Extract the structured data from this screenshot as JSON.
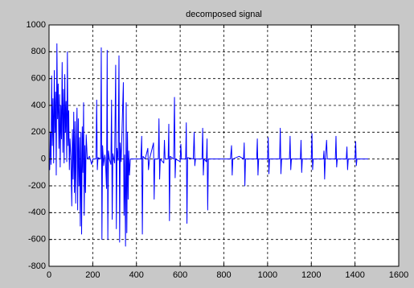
{
  "chart_data": {
    "type": "line",
    "title": "decomposed signal",
    "x": [
      0,
      3,
      6,
      9,
      12,
      15,
      18,
      21,
      24,
      27,
      30,
      33,
      36,
      39,
      42,
      45,
      48,
      51,
      54,
      57,
      60,
      63,
      66,
      69,
      72,
      75,
      78,
      81,
      84,
      87,
      90,
      93,
      96,
      100,
      104,
      107,
      110,
      113,
      116,
      119,
      122,
      125,
      128,
      131,
      134,
      137,
      140,
      143,
      146,
      149,
      152,
      155,
      158,
      161,
      164,
      167,
      170,
      175,
      185,
      195,
      200,
      215,
      218,
      221,
      224,
      236,
      239,
      242,
      245,
      250,
      255,
      258,
      263,
      266,
      269,
      272,
      276,
      283,
      286,
      289,
      292,
      300,
      305,
      308,
      311,
      316,
      320,
      323,
      326,
      330,
      340,
      343,
      346,
      350,
      353,
      356,
      359,
      362,
      365,
      368,
      372,
      420,
      424,
      427,
      430,
      440,
      452,
      455,
      460,
      478,
      481,
      484,
      500,
      503,
      506,
      509,
      525,
      528,
      531,
      545,
      548,
      551,
      554,
      570,
      574,
      577,
      580,
      600,
      603,
      606,
      625,
      628,
      631,
      634,
      660,
      664,
      667,
      670,
      700,
      703,
      706,
      709,
      720,
      723,
      726,
      729,
      760,
      830,
      835,
      838,
      841,
      870,
      890,
      893,
      896,
      899,
      950,
      953,
      956,
      959,
      1000,
      1003,
      1006,
      1009,
      1055,
      1058,
      1061,
      1064,
      1100,
      1103,
      1106,
      1109,
      1150,
      1153,
      1156,
      1159,
      1200,
      1203,
      1206,
      1209,
      1255,
      1258,
      1261,
      1264,
      1270,
      1273,
      1310,
      1313,
      1316,
      1319,
      1360,
      1363,
      1366,
      1369,
      1400,
      1403,
      1406,
      1409,
      1460
    ],
    "series": [
      {
        "color": "#0000ff",
        "values": [
          0,
          -80,
          200,
          -40,
          620,
          100,
          450,
          -30,
          660,
          200,
          500,
          -120,
          860,
          300,
          560,
          80,
          480,
          -60,
          400,
          150,
          720,
          50,
          520,
          -30,
          630,
          200,
          430,
          -20,
          800,
          100,
          360,
          -80,
          150,
          10,
          -350,
          220,
          -150,
          350,
          -250,
          280,
          -330,
          150,
          380,
          -380,
          300,
          -200,
          160,
          -500,
          200,
          -560,
          240,
          -100,
          420,
          -420,
          100,
          -250,
          180,
          0,
          20,
          -40,
          0,
          0,
          440,
          -80,
          10,
          0,
          830,
          -600,
          100,
          -50,
          30,
          0,
          -220,
          810,
          -600,
          60,
          0,
          -40,
          440,
          -450,
          40,
          -30,
          700,
          -520,
          80,
          -10,
          770,
          -620,
          120,
          -20,
          570,
          -420,
          30,
          -650,
          420,
          -550,
          200,
          -300,
          60,
          -120,
          0,
          0,
          170,
          -560,
          20,
          0,
          80,
          -80,
          0,
          120,
          -300,
          0,
          0,
          300,
          -150,
          0,
          -30,
          140,
          0,
          0,
          260,
          -460,
          20,
          0,
          460,
          -140,
          0,
          -20,
          110,
          0,
          0,
          270,
          -480,
          10,
          0,
          200,
          -50,
          0,
          0,
          230,
          -120,
          0,
          -20,
          150,
          -380,
          0,
          0,
          0,
          100,
          -120,
          0,
          20,
          0,
          120,
          -200,
          0,
          0,
          150,
          -120,
          0,
          0,
          160,
          -110,
          0,
          0,
          230,
          -110,
          0,
          0,
          170,
          -80,
          0,
          0,
          140,
          -100,
          0,
          0,
          190,
          -80,
          0,
          0,
          60,
          -150,
          0,
          140,
          0,
          0,
          170,
          -60,
          0,
          0,
          90,
          -80,
          0,
          0,
          130,
          -50,
          0,
          0
        ]
      }
    ],
    "xlim": [
      0,
      1600
    ],
    "xticks": [
      0,
      200,
      400,
      600,
      800,
      1000,
      1200,
      1400,
      1600
    ],
    "ylim": [
      -800,
      1000
    ],
    "yticks": [
      -800,
      -600,
      -400,
      -200,
      0,
      200,
      400,
      600,
      800,
      1000
    ],
    "grid": true
  }
}
